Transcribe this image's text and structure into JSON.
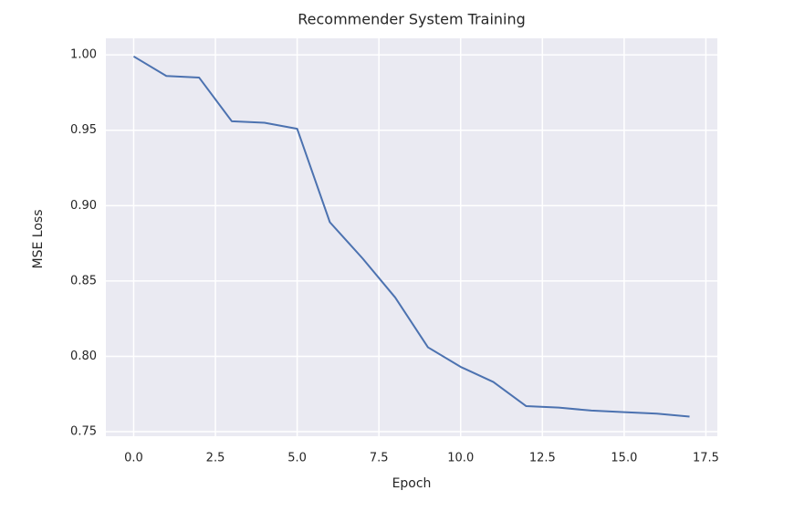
{
  "chart_data": {
    "type": "line",
    "title": "Recommender System Training",
    "x_label": "Epoch",
    "y_label": "MSE Loss",
    "x": [
      0,
      1,
      2,
      3,
      4,
      5,
      6,
      7,
      8,
      9,
      10,
      11,
      12,
      13,
      14,
      15,
      16,
      17
    ],
    "series": [
      {
        "name": "MSE Loss",
        "color": "#4c72b0",
        "values": [
          0.999,
          0.986,
          0.985,
          0.956,
          0.955,
          0.951,
          0.889,
          0.865,
          0.839,
          0.806,
          0.793,
          0.783,
          0.767,
          0.766,
          0.764,
          0.763,
          0.762,
          0.76
        ]
      }
    ],
    "xlim": [
      -0.85,
      17.85
    ],
    "xticks": [
      {
        "value": 0,
        "label": "0.0"
      },
      2.5,
      {
        "value": 5,
        "label": "5.0"
      },
      7.5,
      {
        "value": 10,
        "label": "10.0"
      },
      12.5,
      {
        "value": 15,
        "label": "15.0"
      },
      17.5
    ],
    "ylim": [
      0.747,
      1.011
    ],
    "yticks": [
      0.75,
      {
        "value": 0.8,
        "label": "0.80"
      },
      0.85,
      {
        "value": 0.9,
        "label": "0.90"
      },
      0.95,
      {
        "value": 1,
        "label": "1.00"
      }
    ],
    "grid": true
  }
}
